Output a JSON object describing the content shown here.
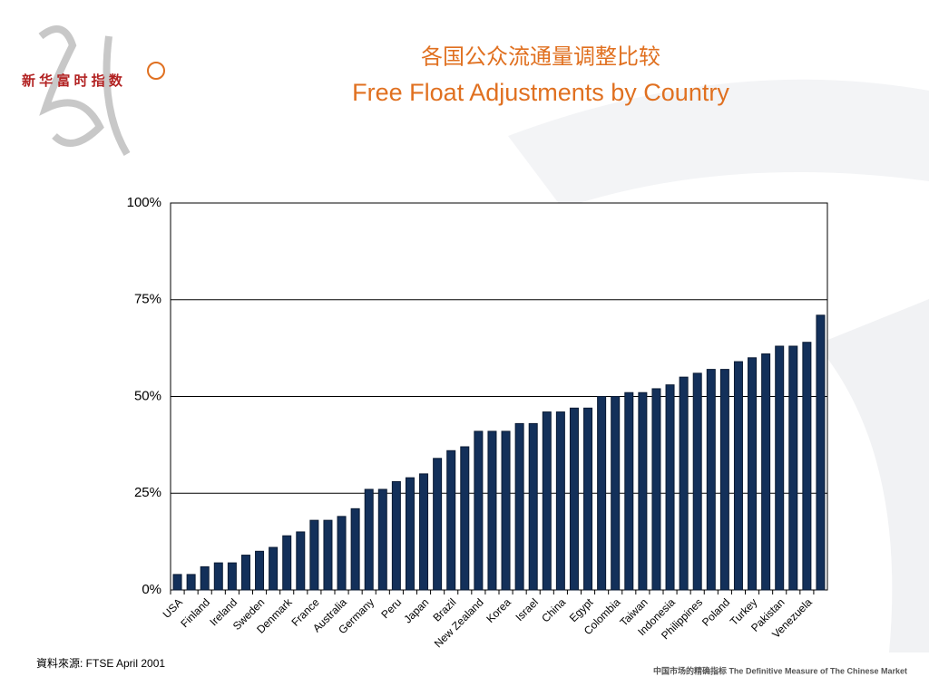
{
  "chart_data": {
    "type": "bar",
    "title": "各国公众流通量调整比较",
    "subtitle": "Free Float Adjustments by Country",
    "categories": [
      "USA",
      null,
      "Finland",
      null,
      "Ireland",
      null,
      "Sweden",
      null,
      "Denmark",
      null,
      "France",
      null,
      "Australia",
      null,
      "Germany",
      null,
      "Peru",
      null,
      "Japan",
      null,
      "Brazil",
      null,
      "New Zealand",
      null,
      "Korea",
      null,
      "Israel",
      null,
      "China",
      null,
      "Egypt",
      null,
      "Colombia",
      null,
      "Taiwan",
      null,
      "Indonesia",
      null,
      "Philippines",
      null,
      "Poland",
      null,
      "Turkey",
      null,
      "Pakistan",
      null,
      "Venezuela",
      null
    ],
    "values": [
      4,
      4,
      6,
      7,
      7,
      9,
      10,
      11,
      14,
      15,
      18,
      18,
      19,
      21,
      26,
      26,
      28,
      29,
      30,
      34,
      36,
      37,
      41,
      41,
      41,
      43,
      43,
      46,
      46,
      47,
      47,
      50,
      50,
      51,
      51,
      52,
      53,
      55,
      56,
      57,
      57,
      59,
      60,
      61,
      63,
      63,
      64,
      71
    ],
    "color": "#13305a",
    "ylim": [
      0,
      100
    ],
    "yticks": [
      {
        "value": 0,
        "label": "0%"
      },
      {
        "value": 25,
        "label": "25%"
      },
      {
        "value": 50,
        "label": "50%"
      },
      {
        "value": 75,
        "label": "75%"
      },
      {
        "value": 100,
        "label": "100%"
      }
    ],
    "grid": true
  },
  "source": "資料來源: FTSE April 2001",
  "logo_text": "新 华 富 时 指 数",
  "tagline": "中国市场的精确指标 The Definitive Measure of The Chinese Market"
}
